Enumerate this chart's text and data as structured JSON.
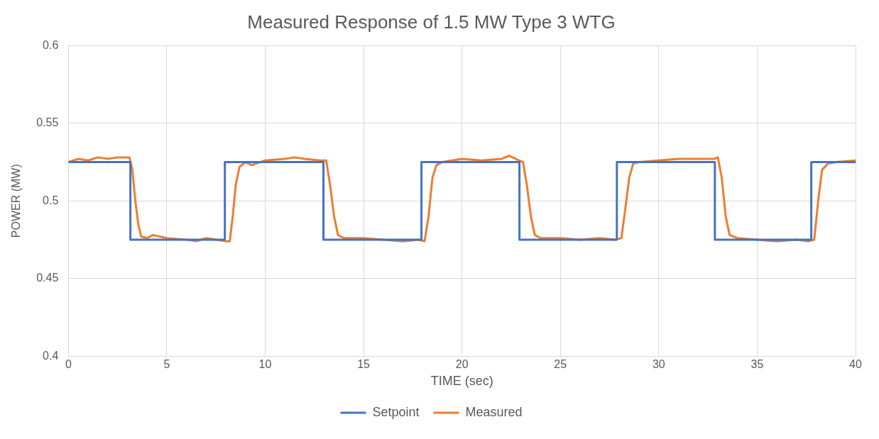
{
  "chart_data": {
    "type": "line",
    "title": "Measured Response of 1.5 MW Type 3 WTG",
    "xlabel": "TIME (sec)",
    "ylabel": "POWER (MW)",
    "xlim": [
      0,
      40
    ],
    "xticks": [
      0,
      5,
      10,
      15,
      20,
      25,
      30,
      35,
      40
    ],
    "ylim": [
      0.4,
      0.6
    ],
    "yticks": [
      0.4,
      0.45,
      0.5,
      0.55,
      0.6
    ],
    "grid": true,
    "legend": "bottom",
    "marker": "none",
    "line_style": "solid",
    "series": [
      {
        "name": "Setpoint",
        "color": "#4472c4",
        "x": [
          0,
          3.15,
          3.15,
          7.95,
          7.95,
          12.96,
          12.96,
          17.94,
          17.94,
          22.92,
          22.92,
          27.87,
          27.87,
          32.85,
          32.85,
          37.75,
          37.75,
          40
        ],
        "values": [
          0.525,
          0.525,
          0.475,
          0.475,
          0.525,
          0.525,
          0.475,
          0.475,
          0.525,
          0.525,
          0.475,
          0.475,
          0.525,
          0.525,
          0.475,
          0.475,
          0.525,
          0.525
        ]
      },
      {
        "name": "Measured",
        "color": "#ed7d31",
        "x": [
          0,
          0.5,
          1,
          1.5,
          2,
          2.5,
          3.1,
          3.25,
          3.4,
          3.55,
          3.7,
          4,
          4.3,
          5,
          6,
          6.5,
          7,
          7.5,
          8,
          8.2,
          8.35,
          8.5,
          8.7,
          9,
          9.3,
          10,
          11,
          11.5,
          12,
          12.8,
          13.1,
          13.3,
          13.5,
          13.7,
          14,
          15,
          16,
          17,
          17.8,
          18.1,
          18.3,
          18.5,
          18.7,
          19,
          20,
          21,
          22,
          22.4,
          22.9,
          23.1,
          23.3,
          23.5,
          23.7,
          24,
          25,
          26,
          27,
          27.8,
          28.1,
          28.3,
          28.5,
          28.7,
          29,
          30,
          31,
          32,
          32.8,
          33,
          33.2,
          33.4,
          33.6,
          34,
          35,
          36,
          37,
          37.6,
          37.9,
          38.1,
          38.3,
          38.6,
          39,
          40
        ],
        "values": [
          0.525,
          0.527,
          0.526,
          0.528,
          0.527,
          0.528,
          0.528,
          0.52,
          0.5,
          0.485,
          0.477,
          0.476,
          0.478,
          0.476,
          0.475,
          0.474,
          0.476,
          0.475,
          0.474,
          0.474,
          0.49,
          0.51,
          0.522,
          0.525,
          0.523,
          0.526,
          0.527,
          0.528,
          0.527,
          0.526,
          0.526,
          0.51,
          0.49,
          0.478,
          0.476,
          0.476,
          0.475,
          0.474,
          0.475,
          0.474,
          0.49,
          0.515,
          0.523,
          0.525,
          0.527,
          0.526,
          0.527,
          0.529,
          0.526,
          0.525,
          0.51,
          0.49,
          0.478,
          0.476,
          0.476,
          0.475,
          0.476,
          0.475,
          0.476,
          0.495,
          0.515,
          0.524,
          0.525,
          0.526,
          0.527,
          0.527,
          0.527,
          0.528,
          0.515,
          0.49,
          0.478,
          0.476,
          0.475,
          0.474,
          0.475,
          0.474,
          0.475,
          0.5,
          0.52,
          0.524,
          0.525,
          0.526
        ]
      }
    ]
  }
}
